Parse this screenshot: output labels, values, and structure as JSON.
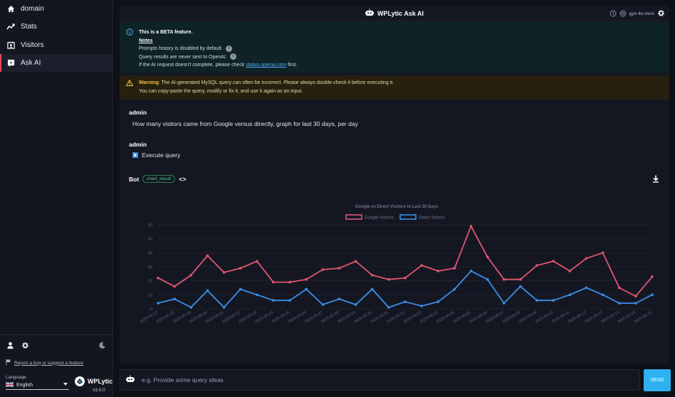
{
  "sidebar": {
    "items": [
      {
        "label": "domain",
        "icon": "home-icon"
      },
      {
        "label": "Stats",
        "icon": "trend-icon"
      },
      {
        "label": "Visitors",
        "icon": "visitors-icon"
      },
      {
        "label": "Ask AI",
        "icon": "ai-icon",
        "active": true
      }
    ],
    "report_link": "Report a bug or suggest a feature",
    "language_label": "Language",
    "language_value": "English",
    "brand": "WPLytic",
    "version": "v3.0.0"
  },
  "header": {
    "title": "WPLytic Ask AI",
    "model": "gpt-4o-mini"
  },
  "info": {
    "beta": "This is a BETA feature.",
    "notes": "Notes",
    "line1": "Prompts history is disabled by default.",
    "line2": "Query results are never sent to OpenAI.",
    "line3_pre": "If the AI request doesn't complete, please check",
    "link": "status.openai.com",
    "line3_post": "first."
  },
  "warning": {
    "label": "Warning",
    "text1": ": The AI-generated MySQL query can often be incorrect. Please always double-check it before executing it.",
    "text2": "You can copy-paste the query, modify or fix it, and use it again as an input."
  },
  "messages": [
    {
      "author": "admin",
      "text": "How many visitors came from Google versus directly, graph for last 30 days, per day"
    },
    {
      "author": "admin",
      "text": "Execute query"
    }
  ],
  "bot": {
    "name": "Bot",
    "chip": "chart_result",
    "code_toggle": "<>"
  },
  "input": {
    "placeholder": "e.g. Provide some query ideas",
    "send_label": "SEND"
  },
  "colors": {
    "google": "#e0566f",
    "direct": "#3a8ee6",
    "accent": "#2fb1f0"
  },
  "chart_data": {
    "type": "line",
    "title": "Google vs Direct Visitors in Last 30 Days",
    "categories": [
      "2025-05-17",
      "2025-05-18",
      "2025-05-19",
      "2025-05-20",
      "2025-05-21",
      "2025-05-22",
      "2025-05-23",
      "2025-05-24",
      "2025-05-25",
      "2025-05-26",
      "2025-05-27",
      "2025-05-28",
      "2025-05-29",
      "2025-05-30",
      "2025-05-31",
      "2025-06-01",
      "2025-06-02",
      "2025-06-03",
      "2025-06-04",
      "2025-06-05",
      "2025-06-06",
      "2025-06-07",
      "2025-06-08",
      "2025-06-09",
      "2025-06-10",
      "2025-06-11",
      "2025-06-12",
      "2025-06-13",
      "2025-06-14",
      "2025-06-15",
      "2025-06-16"
    ],
    "series": [
      {
        "name": "Google Visitors",
        "values": [
          22,
          16,
          24,
          38,
          26,
          29,
          34,
          19,
          19,
          21,
          28,
          29,
          34,
          24,
          21,
          22,
          31,
          27,
          29,
          59,
          37,
          21,
          21,
          31,
          34,
          27,
          36,
          40,
          15,
          9,
          23
        ]
      },
      {
        "name": "Direct Visitors",
        "values": [
          4,
          7,
          1,
          13,
          1,
          14,
          10,
          6,
          6,
          14,
          3,
          7,
          3,
          14,
          1,
          5,
          2,
          5,
          14,
          27,
          21,
          4,
          16,
          6,
          6,
          10,
          15,
          10,
          4,
          4,
          10
        ]
      }
    ],
    "ylim": [
      0,
      60
    ],
    "yticks": [
      0,
      10,
      20,
      30,
      40,
      50,
      60
    ],
    "legend": "top-center",
    "grid": true
  }
}
